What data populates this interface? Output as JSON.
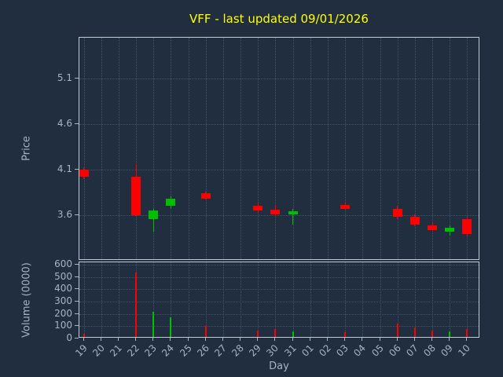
{
  "colors": {
    "background": "#202e40",
    "grid": "#425468",
    "spine": "#c2cad2",
    "text": "#a4b4c8",
    "title": "#ffff00",
    "up": "#00bf00",
    "down": "#ff0000"
  },
  "chart_data": [
    {
      "type": "candlestick",
      "title": "VFF - last updated 09/01/2026",
      "xlabel": "Day",
      "ylabel": "Price",
      "categories": [
        "19",
        "20",
        "21",
        "22",
        "23",
        "24",
        "25",
        "26",
        "27",
        "28",
        "29",
        "30",
        "31",
        "01",
        "02",
        "03",
        "04",
        "05",
        "06",
        "07",
        "08",
        "09",
        "10"
      ],
      "ylim": [
        3.1,
        5.55
      ],
      "yticks": [
        3.6,
        4.1,
        4.6,
        5.1
      ],
      "grid": true,
      "legend": false,
      "candles": [
        {
          "day": "19",
          "open": 4.1,
          "high": 4.13,
          "low": 4.0,
          "close": 4.02
        },
        {
          "day": "22",
          "open": 4.02,
          "high": 4.16,
          "low": 3.58,
          "close": 3.6
        },
        {
          "day": "23",
          "open": 3.56,
          "high": 3.67,
          "low": 3.42,
          "close": 3.65
        },
        {
          "day": "24",
          "open": 3.7,
          "high": 3.81,
          "low": 3.68,
          "close": 3.78
        },
        {
          "day": "26",
          "open": 3.84,
          "high": 3.86,
          "low": 3.77,
          "close": 3.78
        },
        {
          "day": "29",
          "open": 3.7,
          "high": 3.74,
          "low": 3.63,
          "close": 3.65
        },
        {
          "day": "30",
          "open": 3.66,
          "high": 3.71,
          "low": 3.59,
          "close": 3.61
        },
        {
          "day": "31",
          "open": 3.61,
          "high": 3.67,
          "low": 3.5,
          "close": 3.64
        },
        {
          "day": "03",
          "open": 3.71,
          "high": 3.75,
          "low": 3.66,
          "close": 3.67
        },
        {
          "day": "06",
          "open": 3.67,
          "high": 3.7,
          "low": 3.56,
          "close": 3.58
        },
        {
          "day": "07",
          "open": 3.58,
          "high": 3.61,
          "low": 3.48,
          "close": 3.5
        },
        {
          "day": "08",
          "open": 3.49,
          "high": 3.52,
          "low": 3.43,
          "close": 3.44
        },
        {
          "day": "09",
          "open": 3.42,
          "high": 3.49,
          "low": 3.38,
          "close": 3.46
        },
        {
          "day": "10",
          "open": 3.56,
          "high": 3.58,
          "low": 3.37,
          "close": 3.39
        }
      ]
    },
    {
      "type": "bar",
      "ylabel": "Volume (0000)",
      "categories": [
        "19",
        "20",
        "21",
        "22",
        "23",
        "24",
        "25",
        "26",
        "27",
        "28",
        "29",
        "30",
        "31",
        "01",
        "02",
        "03",
        "04",
        "05",
        "06",
        "07",
        "08",
        "09",
        "10"
      ],
      "ylim": [
        0,
        620
      ],
      "yticks": [
        0,
        100,
        200,
        300,
        400,
        500,
        600
      ],
      "grid": true,
      "values": [
        {
          "day": "19",
          "value": 40
        },
        {
          "day": "22",
          "value": 540
        },
        {
          "day": "23",
          "value": 220
        },
        {
          "day": "24",
          "value": 170
        },
        {
          "day": "26",
          "value": 105
        },
        {
          "day": "29",
          "value": 65
        },
        {
          "day": "30",
          "value": 75
        },
        {
          "day": "31",
          "value": 60
        },
        {
          "day": "03",
          "value": 50
        },
        {
          "day": "06",
          "value": 120
        },
        {
          "day": "07",
          "value": 90
        },
        {
          "day": "08",
          "value": 65
        },
        {
          "day": "09",
          "value": 55
        },
        {
          "day": "10",
          "value": 75
        }
      ]
    }
  ]
}
